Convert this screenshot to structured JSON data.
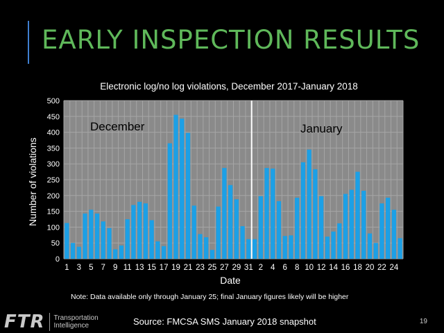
{
  "slide": {
    "title": "EARLY INSPECTION RESULTS",
    "source": "Source: FMCSA SMS January 2018 snapshot",
    "page_number": "19",
    "logo_text": "FTR",
    "logo_subtitle_line1": "Transportation",
    "logo_subtitle_line2": "Intelligence",
    "colors": {
      "title": "#5fb85a",
      "bar": "#1ca0e6",
      "plot_bg": "#8a8a8a",
      "accent": "#3f7fd0"
    }
  },
  "chart_data": {
    "type": "bar",
    "title": "Electronic log/no log violations, December 2017-January 2018",
    "xlabel": "Date",
    "ylabel": "Number of violations",
    "ylim": [
      0,
      500
    ],
    "yticks": [
      0,
      50,
      100,
      150,
      200,
      250,
      300,
      350,
      400,
      450,
      500
    ],
    "grid": true,
    "note": "Note: Data available only through January 25; final January figures likely will be higher",
    "annotations": [
      "December",
      "January"
    ],
    "categories": [
      "1",
      "2",
      "3",
      "4",
      "5",
      "6",
      "7",
      "8",
      "9",
      "10",
      "11",
      "12",
      "13",
      "14",
      "15",
      "16",
      "17",
      "18",
      "19",
      "20",
      "21",
      "22",
      "23",
      "24",
      "25",
      "26",
      "27",
      "28",
      "29",
      "30",
      "31",
      "1",
      "2",
      "3",
      "4",
      "5",
      "6",
      "7",
      "8",
      "9",
      "10",
      "11",
      "12",
      "13",
      "14",
      "15",
      "16",
      "17",
      "18",
      "19",
      "20",
      "21",
      "22",
      "23",
      "24",
      "25"
    ],
    "tick_labels": [
      "1",
      "",
      "3",
      "",
      "5",
      "",
      "7",
      "",
      "9",
      "",
      "11",
      "",
      "13",
      "",
      "15",
      "",
      "17",
      "",
      "19",
      "",
      "21",
      "",
      "23",
      "",
      "25",
      "",
      "27",
      "",
      "29",
      "",
      "31",
      "",
      "2",
      "",
      "4",
      "",
      "6",
      "",
      "8",
      "",
      "10",
      "",
      "12",
      "",
      "14",
      "",
      "16",
      "",
      "18",
      "",
      "20",
      "",
      "22",
      "",
      "24",
      ""
    ],
    "values": [
      113,
      50,
      38,
      143,
      155,
      143,
      118,
      97,
      30,
      42,
      125,
      170,
      180,
      175,
      122,
      55,
      40,
      365,
      455,
      443,
      398,
      168,
      78,
      68,
      28,
      165,
      287,
      233,
      188,
      103,
      62,
      62,
      198,
      287,
      285,
      182,
      72,
      74,
      193,
      305,
      345,
      283,
      198,
      70,
      86,
      112,
      205,
      218,
      275,
      215,
      80,
      50,
      175,
      193,
      155,
      65
    ]
  }
}
